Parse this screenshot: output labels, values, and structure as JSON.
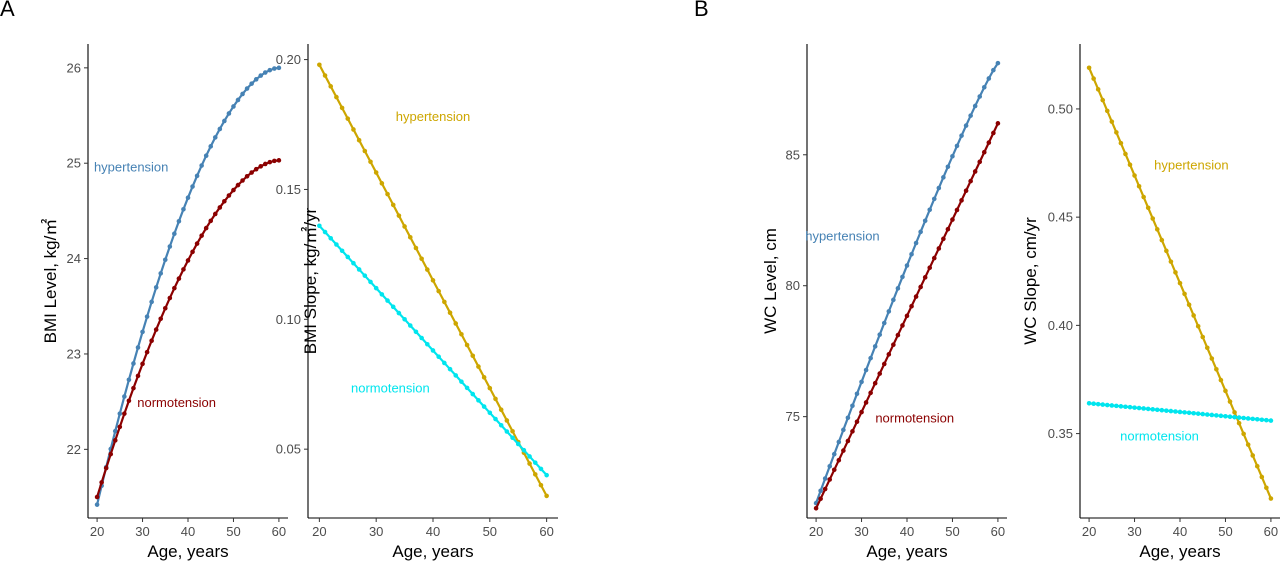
{
  "panels": [
    {
      "letter": "A"
    },
    {
      "letter": "B"
    }
  ],
  "colors": {
    "hypertension_level": "#4682b4",
    "normotension_level": "#8b0000",
    "hypertension_slope": "#cda600",
    "normotension_slope": "#00e5ee"
  },
  "chart_data": [
    {
      "type": "line",
      "panel": "A",
      "xlabel": "Age, years",
      "ylabel": "BMI Level, kg/㎡",
      "xlim": [
        18,
        62
      ],
      "ylim": [
        21.28,
        26.25
      ],
      "xticks": [
        20,
        30,
        40,
        50,
        60
      ],
      "yticks": [
        22,
        23,
        24,
        25,
        26
      ],
      "grid": false,
      "series": [
        {
          "name": "hypertension",
          "color": "#4682b4",
          "x": [
            20,
            60
          ],
          "y": [
            21.42,
            26.0
          ],
          "shape": "concave",
          "label_pos": {
            "x": 27.5,
            "y": 24.96
          }
        },
        {
          "name": "normotension",
          "color": "#8b0000",
          "x": [
            20,
            60
          ],
          "y": [
            21.5,
            25.03
          ],
          "shape": "concave",
          "label_pos": {
            "x": 37.5,
            "y": 22.49
          }
        }
      ]
    },
    {
      "type": "line",
      "panel": "A",
      "xlabel": "Age, years",
      "ylabel": "BMI Slope, kg/㎡/yr",
      "xlim": [
        18,
        62
      ],
      "ylim": [
        0.0235,
        0.206
      ],
      "xticks": [
        20,
        30,
        40,
        50,
        60
      ],
      "yticks": [
        0.05,
        0.1,
        0.15,
        0.2
      ],
      "ytick_labels": [
        "0.05",
        "0.10",
        "0.15",
        "0.20"
      ],
      "grid": false,
      "series": [
        {
          "name": "hypertension",
          "color": "#cda600",
          "x": [
            20,
            60
          ],
          "y": [
            0.198,
            0.032
          ],
          "shape": "linear",
          "label_pos": {
            "x": 40,
            "y": 0.178
          }
        },
        {
          "name": "normotension",
          "color": "#00e5ee",
          "x": [
            20,
            60
          ],
          "y": [
            0.136,
            0.04
          ],
          "shape": "linear",
          "label_pos": {
            "x": 32.5,
            "y": 0.0735
          }
        }
      ]
    },
    {
      "type": "line",
      "panel": "B",
      "xlabel": "Age, years",
      "ylabel": "WC Level, cm",
      "xlim": [
        18,
        62
      ],
      "ylim": [
        71.13,
        89.23
      ],
      "xticks": [
        20,
        30,
        40,
        50,
        60
      ],
      "yticks": [
        75,
        80,
        85
      ],
      "grid": false,
      "series": [
        {
          "name": "hypertension",
          "color": "#4682b4",
          "x": [
            20,
            60
          ],
          "y": [
            71.7,
            88.5
          ],
          "shape": "slightly-concave",
          "label_pos": {
            "x": 25.8,
            "y": 81.9
          }
        },
        {
          "name": "normotension",
          "color": "#8b0000",
          "x": [
            20,
            60
          ],
          "y": [
            71.5,
            86.2
          ],
          "shape": "linear",
          "label_pos": {
            "x": 41.7,
            "y": 74.95
          }
        }
      ]
    },
    {
      "type": "line",
      "panel": "B",
      "xlabel": "Age, years",
      "ylabel": "WC Slope, cm/yr",
      "xlim": [
        18,
        62
      ],
      "ylim": [
        0.311,
        0.53
      ],
      "xticks": [
        20,
        30,
        40,
        50,
        60
      ],
      "yticks": [
        0.35,
        0.4,
        0.45,
        0.5
      ],
      "ytick_labels": [
        "0.35",
        "0.40",
        "0.45",
        "0.50"
      ],
      "grid": false,
      "series": [
        {
          "name": "hypertension",
          "color": "#cda600",
          "x": [
            20,
            60
          ],
          "y": [
            0.519,
            0.32
          ],
          "shape": "linear",
          "label_pos": {
            "x": 42.5,
            "y": 0.474
          }
        },
        {
          "name": "normotension",
          "color": "#00e5ee",
          "x": [
            20,
            60
          ],
          "y": [
            0.364,
            0.356
          ],
          "shape": "linear",
          "label_pos": {
            "x": 35.5,
            "y": 0.349
          }
        }
      ]
    }
  ]
}
